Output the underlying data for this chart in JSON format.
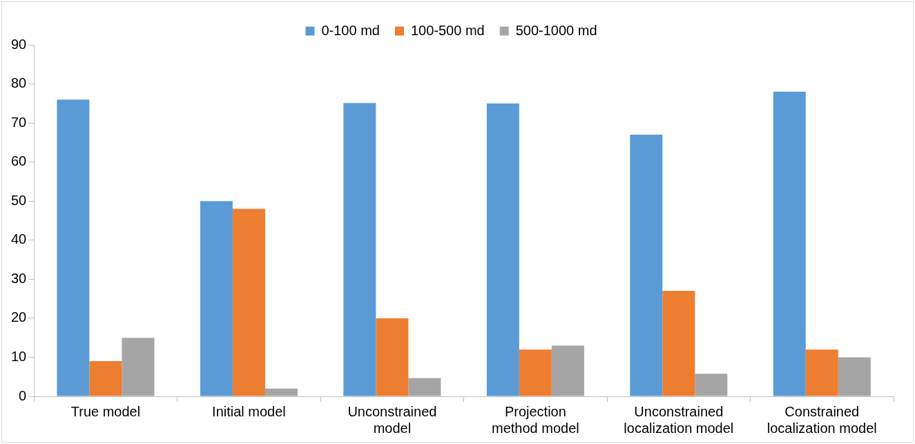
{
  "chart_data": {
    "type": "bar",
    "categories": [
      "True model",
      "Initial model",
      "Unconstrained model",
      "Projection method model",
      "Unconstrained localization model",
      "Constrained localization model"
    ],
    "series": [
      {
        "name": "0-100 md",
        "color": "#5b9bd5",
        "values": [
          76,
          50,
          75.1,
          75,
          67,
          78
        ]
      },
      {
        "name": "100-500 md",
        "color": "#ed7d31",
        "values": [
          9,
          48,
          20,
          12,
          27,
          12
        ]
      },
      {
        "name": "500-1000 md",
        "color": "#a5a5a5",
        "values": [
          15,
          2,
          4.7,
          13,
          5.8,
          10
        ]
      }
    ],
    "ylim": [
      0,
      90
    ],
    "yticks": [
      0,
      10,
      20,
      30,
      40,
      50,
      60,
      70,
      80,
      90
    ],
    "grid": false,
    "legend": "top"
  }
}
